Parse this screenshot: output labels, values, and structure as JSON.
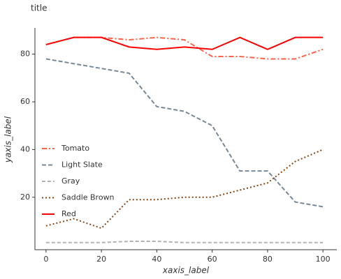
{
  "chart_data": {
    "type": "line",
    "title": "title",
    "xlabel": "xaxis_label",
    "ylabel": "yaxis_label",
    "x": [
      0,
      10,
      20,
      30,
      40,
      50,
      60,
      70,
      80,
      90,
      100
    ],
    "series": [
      {
        "name": "Tomato",
        "color": "#ff6347",
        "dash": "7,3,2,3",
        "values": [
          84,
          87,
          87,
          86,
          87,
          86,
          79,
          79,
          78,
          78,
          82
        ]
      },
      {
        "name": "Light Slate",
        "color": "#778899",
        "dash": "6,3",
        "values": [
          78,
          76,
          74,
          72,
          58,
          56,
          50,
          31,
          31,
          18,
          16
        ]
      },
      {
        "name": "Gray",
        "color": "#b0b0b0",
        "dash": "5,3",
        "values": [
          1,
          1,
          1,
          1.5,
          1.5,
          1,
          1,
          1,
          1,
          1,
          1
        ]
      },
      {
        "name": "Saddle Brown",
        "color": "#8b4513",
        "dash": "2,3",
        "values": [
          8,
          11,
          7,
          19,
          19,
          20,
          20,
          23,
          26,
          35,
          40
        ]
      },
      {
        "name": "Red",
        "color": "#ff0000",
        "dash": "none",
        "values": [
          84,
          87,
          87,
          83,
          82,
          83,
          82,
          87,
          82,
          87,
          87
        ]
      }
    ],
    "xlim": [
      -4,
      105
    ],
    "ylim": [
      -2,
      91
    ],
    "xticks": [
      0,
      20,
      40,
      60,
      80,
      100
    ],
    "yticks": [
      20,
      40,
      60,
      80
    ]
  }
}
